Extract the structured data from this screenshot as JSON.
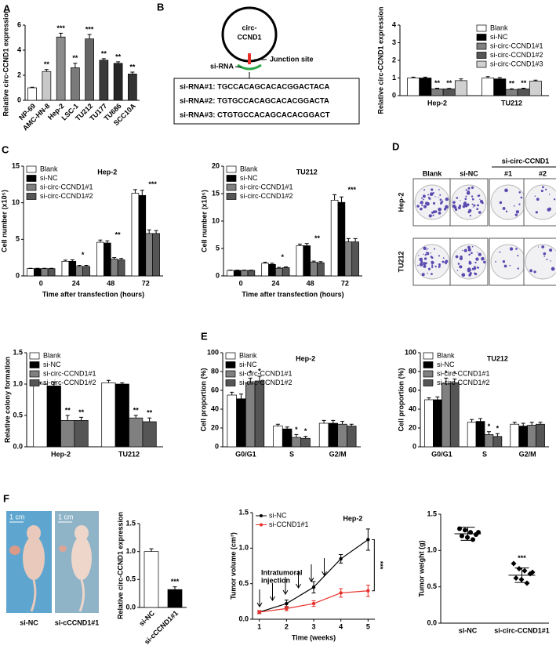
{
  "chart_data": [
    {
      "type": "bar",
      "panel": "A",
      "categories": [
        "NP-69",
        "AMC-HN-8",
        "Hep-2",
        "LSC-1",
        "TU212",
        "TU177",
        "TU686",
        "SCC10A"
      ],
      "values": [
        1.0,
        2.3,
        5.05,
        2.6,
        4.9,
        3.2,
        2.95,
        2.1
      ],
      "errors": [
        0.05,
        0.15,
        0.3,
        0.35,
        0.35,
        0.12,
        0.12,
        0.15
      ],
      "colors": [
        "#ffffff",
        "#c8c8c8",
        "#8c8c8c",
        "#7a7a7a",
        "#666666",
        "#3a3a3a",
        "#262626",
        "#333333"
      ],
      "significance": [
        null,
        "**",
        "***",
        "**",
        "***",
        "**",
        "**",
        "**"
      ],
      "ylabel": "Relative circ-CCND1 expression",
      "ylim": [
        0,
        6
      ],
      "yticks": [
        0,
        2,
        4,
        6
      ]
    },
    {
      "type": "bar",
      "categories": [
        "Hep-2",
        "TU212"
      ],
      "legend": "upper right",
      "series": [
        {
          "name": "Blank",
          "color": "#ffffff",
          "values": [
            1.0,
            1.0
          ],
          "errors": [
            0.05,
            0.08
          ]
        },
        {
          "name": "si-NC",
          "color": "#000000",
          "values": [
            1.0,
            0.95
          ],
          "errors": [
            0.05,
            0.08
          ]
        },
        {
          "name": "si-circ-CCND1#1",
          "color": "#808080",
          "values": [
            0.38,
            0.35
          ],
          "errors": [
            0.04,
            0.04
          ],
          "significance": [
            "**",
            "**"
          ]
        },
        {
          "name": "si-circ-CCND1#2",
          "color": "#555555",
          "values": [
            0.38,
            0.38
          ],
          "errors": [
            0.03,
            0.04
          ],
          "significance": [
            "**",
            "**"
          ]
        },
        {
          "name": "si-circ-CCND1#3",
          "color": "#d0d0d0",
          "values": [
            0.85,
            0.82
          ],
          "errors": [
            0.1,
            0.06
          ]
        }
      ],
      "ylabel": "Relative circ-CCND1 expression",
      "ylim": [
        0,
        4
      ],
      "yticks": [
        0,
        1,
        2,
        3,
        4
      ]
    },
    {
      "type": "bar",
      "panel": "C",
      "title": "Hep-2",
      "categories": [
        "0",
        "24",
        "48",
        "72"
      ],
      "legend": "upper left",
      "series": [
        {
          "name": "Blank",
          "color": "#ffffff",
          "values": [
            1,
            2,
            4.6,
            11.3
          ],
          "errors": [
            0.05,
            0.15,
            0.3,
            0.5
          ]
        },
        {
          "name": "si-NC",
          "color": "#000000",
          "values": [
            1,
            2,
            4.5,
            11
          ],
          "errors": [
            0.05,
            0.2,
            0.3,
            0.7
          ]
        },
        {
          "name": "si-circ-CCND1#1",
          "color": "#808080",
          "values": [
            1,
            1.3,
            2.3,
            5.8
          ],
          "errors": [
            0.05,
            0.15,
            0.2,
            0.5
          ]
        },
        {
          "name": "si-circ-CCND1#2",
          "color": "#555555",
          "values": [
            1,
            1.3,
            2.2,
            5.8
          ],
          "errors": [
            0.05,
            0.15,
            0.2,
            0.4
          ]
        }
      ],
      "significance": [
        null,
        "*",
        "**",
        "***"
      ],
      "ylabel": "Cell number (x10⁵)",
      "xlabel": "Time after transfection (hours)",
      "ylim": [
        0,
        15
      ],
      "yticks": [
        0,
        5,
        10,
        15
      ]
    },
    {
      "type": "bar",
      "title": "TU212",
      "categories": [
        "0",
        "24",
        "48",
        "72"
      ],
      "legend": "upper left",
      "series": [
        {
          "name": "Blank",
          "color": "#ffffff",
          "values": [
            1,
            2.3,
            5.5,
            13.8
          ],
          "errors": [
            0.05,
            0.2,
            0.3,
            1.0
          ]
        },
        {
          "name": "si-NC",
          "color": "#000000",
          "values": [
            1,
            2.1,
            5.5,
            13.4
          ],
          "errors": [
            0.05,
            0.2,
            0.4,
            1.0
          ]
        },
        {
          "name": "si-circ-CCND1#1",
          "color": "#808080",
          "values": [
            1,
            1.4,
            2.5,
            6.2
          ],
          "errors": [
            0.05,
            0.15,
            0.2,
            0.6
          ]
        },
        {
          "name": "si-circ-CCND1#2",
          "color": "#555555",
          "values": [
            1,
            1.5,
            2.4,
            6.2
          ],
          "errors": [
            0.05,
            0.15,
            0.2,
            0.6
          ]
        }
      ],
      "significance": [
        null,
        "*",
        "**",
        "***"
      ],
      "ylabel": "Cell number (x10⁵)",
      "xlabel": "Time after transfection (hours)",
      "ylim": [
        0,
        20
      ],
      "yticks": [
        0,
        5,
        10,
        15,
        20
      ]
    },
    {
      "type": "bar",
      "categories": [
        "Hep-2",
        "TU212"
      ],
      "legend": "upper left",
      "series": [
        {
          "name": "Blank",
          "color": "#ffffff",
          "values": [
            1.0,
            1.02
          ],
          "errors": [
            0.03,
            0.04
          ]
        },
        {
          "name": "si-NC",
          "color": "#000000",
          "values": [
            0.97,
            1.0
          ],
          "errors": [
            0.06,
            0.02
          ]
        },
        {
          "name": "si-circ-CCND1#1",
          "color": "#808080",
          "values": [
            0.42,
            0.46
          ],
          "errors": [
            0.08,
            0.04
          ],
          "significance": [
            "**",
            "**"
          ]
        },
        {
          "name": "si-circ-CCND1#2",
          "color": "#555555",
          "values": [
            0.42,
            0.4
          ],
          "errors": [
            0.05,
            0.06
          ],
          "significance": [
            "**",
            "**"
          ]
        }
      ],
      "ylabel": "Relative colony formation",
      "ylim": [
        0,
        1.5
      ],
      "yticks": [
        {
          "value": 0,
          "label": "0.0"
        },
        {
          "value": 0.5,
          "label": "0.5"
        },
        {
          "value": 1,
          "label": "1.0"
        },
        {
          "value": 1.5,
          "label": "1.5"
        }
      ]
    },
    {
      "type": "bar",
      "panel": "E",
      "title": "Hep-2",
      "categories": [
        "G0/G1",
        "S",
        "G2/M"
      ],
      "legend": "upper left",
      "series": [
        {
          "name": "Blank",
          "color": "#ffffff",
          "values": [
            55,
            22,
            25
          ],
          "errors": [
            3,
            2,
            3
          ]
        },
        {
          "name": "si-NC",
          "color": "#000000",
          "values": [
            51,
            19,
            25
          ],
          "errors": [
            5,
            2,
            3
          ]
        },
        {
          "name": "si-circ-CCND1#1",
          "color": "#808080",
          "values": [
            68,
            10,
            24
          ],
          "errors": [
            5,
            3,
            3
          ],
          "significance": [
            "*",
            "*",
            null
          ]
        },
        {
          "name": "si-circ-CCND1#2",
          "color": "#555555",
          "values": [
            70,
            9,
            22
          ],
          "errors": [
            5,
            2,
            2
          ],
          "significance": [
            "*",
            "*",
            null
          ]
        }
      ],
      "ylabel": "Cell proportion (%)",
      "ylim": [
        0,
        100
      ],
      "yticks": [
        0,
        20,
        40,
        60,
        80,
        100
      ]
    },
    {
      "type": "bar",
      "title": "TU212",
      "categories": [
        "G0/G1",
        "S",
        "G2/M"
      ],
      "legend": "upper left",
      "series": [
        {
          "name": "Blank",
          "color": "#ffffff",
          "values": [
            50,
            26,
            24
          ],
          "errors": [
            2,
            3,
            2
          ]
        },
        {
          "name": "si-NC",
          "color": "#000000",
          "values": [
            50,
            27,
            22
          ],
          "errors": [
            3,
            3,
            3
          ]
        },
        {
          "name": "si-circ-CCND1#1",
          "color": "#808080",
          "values": [
            67,
            13,
            23
          ],
          "errors": [
            6,
            3,
            3
          ],
          "significance": [
            "*",
            "*",
            null
          ]
        },
        {
          "name": "si-circ-CCND1#2",
          "color": "#555555",
          "values": [
            68,
            11,
            24
          ],
          "errors": [
            4,
            3,
            2
          ],
          "significance": [
            "*",
            "*",
            null
          ]
        }
      ],
      "ylabel": "Cell proportion (%)",
      "ylim": [
        0,
        100
      ],
      "yticks": [
        0,
        20,
        40,
        60,
        80,
        100
      ]
    },
    {
      "type": "bar",
      "categories": [
        "si-NC",
        "si-cCCND1#1"
      ],
      "values": [
        1.0,
        0.32
      ],
      "errors": [
        0.05,
        0.05
      ],
      "colors": [
        "#ffffff",
        "#000000"
      ],
      "significance": [
        null,
        "***"
      ],
      "ylabel": "Relative circ-CCND1 expression",
      "ylim": [
        0,
        1.5
      ],
      "yticks": [
        {
          "value": 0,
          "label": "0.0"
        },
        {
          "value": 0.5,
          "label": "0.5"
        },
        {
          "value": 1,
          "label": "1.0"
        },
        {
          "value": 1.5,
          "label": "1.5"
        }
      ]
    },
    {
      "type": "line",
      "title": "Hep-2",
      "x": [
        1,
        2,
        3,
        4,
        5
      ],
      "legend": "upper left",
      "series": [
        {
          "name": "si-NC",
          "color": "#000000",
          "values": [
            0.1,
            0.22,
            0.45,
            0.85,
            1.12
          ],
          "errors": [
            0.02,
            0.05,
            0.08,
            0.06,
            0.15
          ]
        },
        {
          "name": "si-CCND1#1",
          "color": "#e8312a",
          "values": [
            0.1,
            0.15,
            0.22,
            0.37,
            0.4
          ],
          "errors": [
            0.02,
            0.03,
            0.04,
            0.06,
            0.08
          ]
        }
      ],
      "annotation_lines": [
        "Intratumoral",
        "injection"
      ],
      "significance": "***",
      "xlabel": "Time (weeks)",
      "ylabel": "Tumor volume (cm³)",
      "xlim": [
        0.75,
        5.25
      ],
      "xticks": [
        1,
        2,
        3,
        4,
        5
      ],
      "ylim": [
        0,
        1.5
      ],
      "yticks": [
        {
          "value": 0,
          "label": "0.0"
        },
        {
          "value": 0.5,
          "label": "0.5"
        },
        {
          "value": 1,
          "label": "1.0"
        },
        {
          "value": 1.5,
          "label": "1.5"
        }
      ]
    },
    {
      "type": "strip",
      "categories": [
        "si-NC",
        "si-circ-CCND1#1"
      ],
      "values": [
        [
          1.3,
          1.28,
          1.25,
          1.22,
          1.2,
          1.18,
          1.15,
          1.25
        ],
        [
          0.82,
          0.75,
          0.72,
          0.68,
          0.62,
          0.6,
          0.55,
          0.7
        ]
      ],
      "markers": [
        "circle",
        "diamond"
      ],
      "means": [
        1.23,
        0.66
      ],
      "errors": [
        0.09,
        0.1
      ],
      "significance": [
        null,
        "***"
      ],
      "ylabel": "Tumor weight (g)",
      "ylim": [
        0,
        1.5
      ],
      "yticks": [
        {
          "value": 0,
          "label": "0.0"
        },
        {
          "value": 0.5,
          "label": "0.5"
        },
        {
          "value": 1,
          "label": "1.0"
        },
        {
          "value": 1.5,
          "label": "1.5"
        }
      ]
    }
  ],
  "diagram": {
    "panel": "B",
    "circle_label_lines": [
      "circ-",
      "CCND1"
    ],
    "sirna_label": "si-RNA",
    "junction_label": "Junction site",
    "sequences": [
      "si-RNA#1: TGCCACAGCACACGGACTACA",
      "si-RNA#2: TGTGCCACAGCACACGGACTA",
      "si-RNA#3: CTGTGCCACAGCACACGGACT"
    ]
  },
  "colony": {
    "panel": "D",
    "group_label": "si-circ-CCND1",
    "columns": [
      "Blank",
      "si-NC",
      "#1",
      "#2"
    ],
    "rows": [
      "Hep-2",
      "TU212"
    ]
  },
  "photo": {
    "panel": "F",
    "scale_labels": [
      "1 cm",
      "1 cm"
    ],
    "labels": [
      "si-NC",
      "si-cCCND1#1"
    ]
  }
}
